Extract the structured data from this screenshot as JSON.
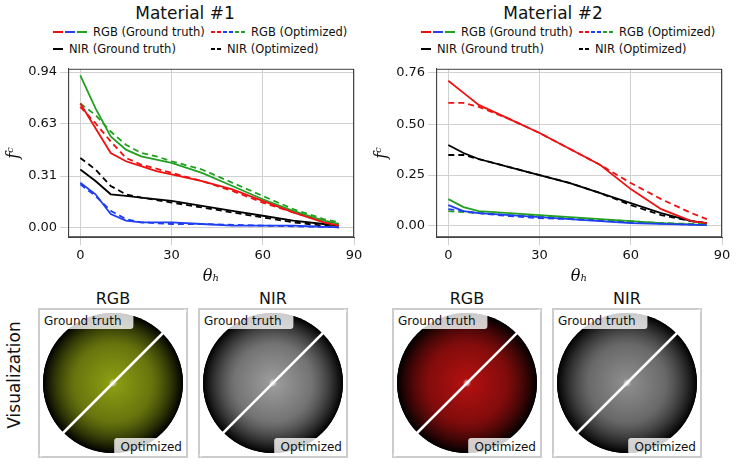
{
  "chart_data": [
    {
      "type": "line",
      "title": "Material #1",
      "x_label": "θₕ",
      "y_label": "fᶜ",
      "xlim": [
        -4,
        90
      ],
      "xticks": [
        0,
        30,
        60,
        90
      ],
      "ylim": [
        -0.06,
        0.96
      ],
      "yticks": [
        {
          "value": 0,
          "label": "0.00"
        },
        {
          "value": 0.31,
          "label": "0.31"
        },
        {
          "value": 0.63,
          "label": "0.63"
        },
        {
          "value": 0.94,
          "label": "0.94"
        }
      ],
      "grid": true,
      "legend": "top",
      "series": [
        {
          "name": "RGB (Ground truth)",
          "color": "#ee1111",
          "line_style": "solid",
          "x": [
            0,
            5,
            10,
            15,
            20,
            25,
            30,
            40,
            50,
            60,
            70,
            80,
            85
          ],
          "values": [
            0.75,
            0.6,
            0.45,
            0.4,
            0.37,
            0.34,
            0.32,
            0.28,
            0.23,
            0.16,
            0.09,
            0.03,
            0.01
          ]
        },
        {
          "name": "RGB (Ground truth)",
          "color": "#1f3ff0",
          "line_style": "solid",
          "x": [
            0,
            5,
            10,
            15,
            20,
            30,
            40,
            50,
            60,
            70,
            85
          ],
          "values": [
            0.27,
            0.2,
            0.08,
            0.04,
            0.03,
            0.03,
            0.02,
            0.01,
            0.01,
            0.01,
            0.0
          ]
        },
        {
          "name": "RGB (Ground truth)",
          "color": "#22a022",
          "line_style": "solid",
          "x": [
            0,
            5,
            10,
            15,
            20,
            25,
            30,
            40,
            50,
            60,
            70,
            80,
            85
          ],
          "values": [
            0.92,
            0.72,
            0.55,
            0.47,
            0.43,
            0.41,
            0.39,
            0.33,
            0.25,
            0.17,
            0.1,
            0.04,
            0.02
          ]
        },
        {
          "name": "RGB (Optimized)",
          "color": "#ee1111",
          "line_style": "dashed",
          "x": [
            0,
            5,
            10,
            15,
            20,
            30,
            40,
            50,
            60,
            70,
            80,
            85
          ],
          "values": [
            0.73,
            0.63,
            0.52,
            0.42,
            0.38,
            0.33,
            0.28,
            0.22,
            0.15,
            0.09,
            0.04,
            0.02
          ]
        },
        {
          "name": "RGB (Optimized)",
          "color": "#1f3ff0",
          "line_style": "dashed",
          "x": [
            0,
            5,
            10,
            15,
            20,
            30,
            40,
            60,
            85
          ],
          "values": [
            0.26,
            0.19,
            0.1,
            0.05,
            0.03,
            0.02,
            0.02,
            0.01,
            0.0
          ]
        },
        {
          "name": "RGB (Optimized)",
          "color": "#22a022",
          "line_style": "dashed",
          "x": [
            0,
            5,
            10,
            15,
            20,
            25,
            30,
            40,
            50,
            60,
            70,
            80,
            85
          ],
          "values": [
            0.75,
            0.68,
            0.58,
            0.5,
            0.45,
            0.43,
            0.4,
            0.35,
            0.27,
            0.19,
            0.11,
            0.05,
            0.03
          ]
        },
        {
          "name": "NIR (Ground truth)",
          "color": "#000000",
          "line_style": "solid",
          "x": [
            0,
            5,
            10,
            15,
            20,
            30,
            40,
            50,
            60,
            70,
            80,
            85
          ],
          "values": [
            0.35,
            0.28,
            0.2,
            0.19,
            0.18,
            0.16,
            0.13,
            0.1,
            0.07,
            0.04,
            0.02,
            0.01
          ]
        },
        {
          "name": "NIR (Optimized)",
          "color": "#000000",
          "line_style": "dashed",
          "x": [
            0,
            5,
            10,
            15,
            20,
            30,
            40,
            50,
            60,
            70,
            80,
            85
          ],
          "values": [
            0.42,
            0.35,
            0.25,
            0.2,
            0.18,
            0.15,
            0.12,
            0.09,
            0.06,
            0.03,
            0.01,
            0.0
          ]
        }
      ]
    },
    {
      "type": "line",
      "title": "Material #2",
      "x_label": "θₕ",
      "y_label": "fᶜ",
      "xlim": [
        -4,
        90
      ],
      "xticks": [
        0,
        30,
        60,
        90
      ],
      "ylim": [
        -0.06,
        0.78
      ],
      "yticks": [
        {
          "value": 0,
          "label": "0.00"
        },
        {
          "value": 0.25,
          "label": "0.25"
        },
        {
          "value": 0.5,
          "label": "0.50"
        },
        {
          "value": 0.76,
          "label": "0.76"
        }
      ],
      "grid": true,
      "legend": "top",
      "series": [
        {
          "name": "RGB (Ground truth)",
          "color": "#ee1111",
          "line_style": "solid",
          "x": [
            0,
            5,
            10,
            20,
            30,
            40,
            50,
            60,
            70,
            80,
            85
          ],
          "values": [
            0.72,
            0.66,
            0.6,
            0.53,
            0.46,
            0.38,
            0.3,
            0.18,
            0.08,
            0.02,
            0.01
          ]
        },
        {
          "name": "RGB (Ground truth)",
          "color": "#1f3ff0",
          "line_style": "solid",
          "x": [
            0,
            5,
            10,
            20,
            30,
            40,
            50,
            60,
            85
          ],
          "values": [
            0.1,
            0.07,
            0.06,
            0.05,
            0.04,
            0.03,
            0.02,
            0.01,
            0.0
          ]
        },
        {
          "name": "RGB (Ground truth)",
          "color": "#22a022",
          "line_style": "solid",
          "x": [
            0,
            5,
            10,
            20,
            30,
            40,
            50,
            60,
            70,
            85
          ],
          "values": [
            0.13,
            0.09,
            0.07,
            0.06,
            0.05,
            0.04,
            0.03,
            0.02,
            0.01,
            0.0
          ]
        },
        {
          "name": "RGB (Optimized)",
          "color": "#ee1111",
          "line_style": "dashed",
          "x": [
            0,
            5,
            10,
            20,
            30,
            40,
            50,
            60,
            70,
            80,
            85
          ],
          "values": [
            0.61,
            0.61,
            0.59,
            0.53,
            0.46,
            0.38,
            0.3,
            0.21,
            0.13,
            0.06,
            0.03
          ]
        },
        {
          "name": "RGB (Optimized)",
          "color": "#1f3ff0",
          "line_style": "dashed",
          "x": [
            0,
            10,
            20,
            30,
            40,
            60,
            85
          ],
          "values": [
            0.08,
            0.06,
            0.045,
            0.035,
            0.03,
            0.015,
            0.0
          ]
        },
        {
          "name": "RGB (Optimized)",
          "color": "#22a022",
          "line_style": "dashed",
          "x": [
            0,
            10,
            20,
            30,
            40,
            50,
            60,
            70,
            85
          ],
          "values": [
            0.07,
            0.06,
            0.05,
            0.045,
            0.035,
            0.025,
            0.02,
            0.01,
            0.005
          ]
        },
        {
          "name": "NIR (Ground truth)",
          "color": "#000000",
          "line_style": "solid",
          "x": [
            0,
            5,
            10,
            20,
            30,
            40,
            50,
            60,
            70,
            80,
            85
          ],
          "values": [
            0.4,
            0.36,
            0.33,
            0.29,
            0.25,
            0.21,
            0.16,
            0.11,
            0.06,
            0.02,
            0.01
          ]
        },
        {
          "name": "NIR (Optimized)",
          "color": "#000000",
          "line_style": "dashed",
          "x": [
            0,
            5,
            10,
            20,
            30,
            40,
            50,
            60,
            70,
            80,
            85
          ],
          "values": [
            0.35,
            0.35,
            0.33,
            0.29,
            0.25,
            0.21,
            0.16,
            0.1,
            0.05,
            0.02,
            0.01
          ]
        }
      ]
    }
  ],
  "visualization": {
    "label": "Visualization",
    "panels": [
      [
        {
          "title": "RGB",
          "color": "#8a9c12",
          "top": "Ground truth",
          "bottom": "Optimized"
        },
        {
          "title": "NIR",
          "color": "#9a9a9a",
          "top": "Ground truth",
          "bottom": "Optimized"
        }
      ],
      [
        {
          "title": "RGB",
          "color": "#b01010",
          "top": "Ground truth",
          "bottom": "Optimized"
        },
        {
          "title": "NIR",
          "color": "#8c8c8c",
          "top": "Ground truth",
          "bottom": "Optimized"
        }
      ]
    ]
  }
}
